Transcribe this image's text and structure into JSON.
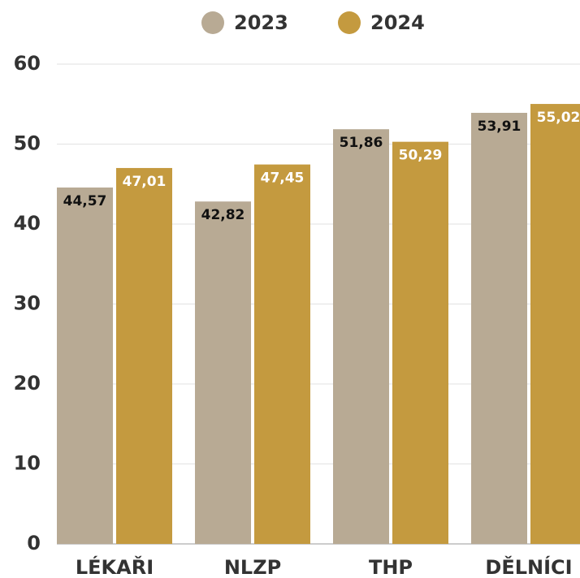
{
  "chart_data": {
    "type": "bar",
    "categories": [
      "LÉKAŘI",
      "NLZP",
      "THP",
      "DĚLNÍCI"
    ],
    "series": [
      {
        "name": "2023",
        "color": "#b8aa94",
        "label_color": "#111111",
        "values": [
          44.57,
          42.82,
          51.86,
          53.91
        ],
        "value_labels": [
          "44,57",
          "42,82",
          "51,86",
          "53,91"
        ]
      },
      {
        "name": "2024",
        "color": "#c49a3f",
        "label_color": "#ffffff",
        "values": [
          47.01,
          47.45,
          50.29,
          55.02
        ],
        "value_labels": [
          "47,01",
          "47,45",
          "50,29",
          "55,02"
        ]
      }
    ],
    "ylim": [
      0,
      60
    ],
    "yticks": [
      0,
      10,
      20,
      30,
      40,
      50,
      60
    ],
    "grid": true,
    "legend": "top"
  }
}
